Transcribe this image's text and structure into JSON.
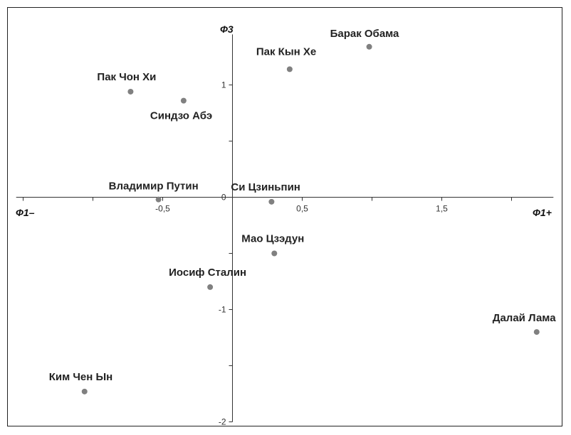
{
  "chart_data": {
    "type": "scatter",
    "xlabel_negative": "Ф1–",
    "xlabel_positive": "Ф1+",
    "ylabel": "Ф3",
    "xlim": [
      -1.55,
      2.3
    ],
    "ylim": [
      -2.0,
      1.45
    ],
    "x_ticks": [
      {
        "value": -0.5,
        "label": "-0,5"
      },
      {
        "value": 0.5,
        "label": "0,5"
      },
      {
        "value": 1.5,
        "label": "1,5"
      }
    ],
    "y_ticks": [
      {
        "value": 1,
        "label": "1"
      },
      {
        "value": 0,
        "label": "0"
      },
      {
        "value": -1,
        "label": "-1"
      },
      {
        "value": -2,
        "label": "-2"
      }
    ],
    "grid": false,
    "marker_color": "#808080",
    "points": [
      {
        "label": "Барак Обама",
        "x": 0.98,
        "y": 1.34
      },
      {
        "label": "Пак Кын Хе",
        "x": 0.41,
        "y": 1.14
      },
      {
        "label": "Пак Чон Хи",
        "x": -0.73,
        "y": 0.94
      },
      {
        "label": "Синдзо Абэ",
        "x": -0.35,
        "y": 0.86
      },
      {
        "label": "Владимир Путин",
        "x": -0.53,
        "y": -0.02
      },
      {
        "label": "Си Цзиньпин",
        "x": 0.28,
        "y": -0.04
      },
      {
        "label": "Мао Цзэдун",
        "x": 0.3,
        "y": -0.5
      },
      {
        "label": "Иосиф Сталин",
        "x": -0.16,
        "y": -0.8
      },
      {
        "label": "Далай Лама",
        "x": 2.18,
        "y": -1.2
      },
      {
        "label": "Ким Чен Ын",
        "x": -1.06,
        "y": -1.73
      }
    ]
  }
}
